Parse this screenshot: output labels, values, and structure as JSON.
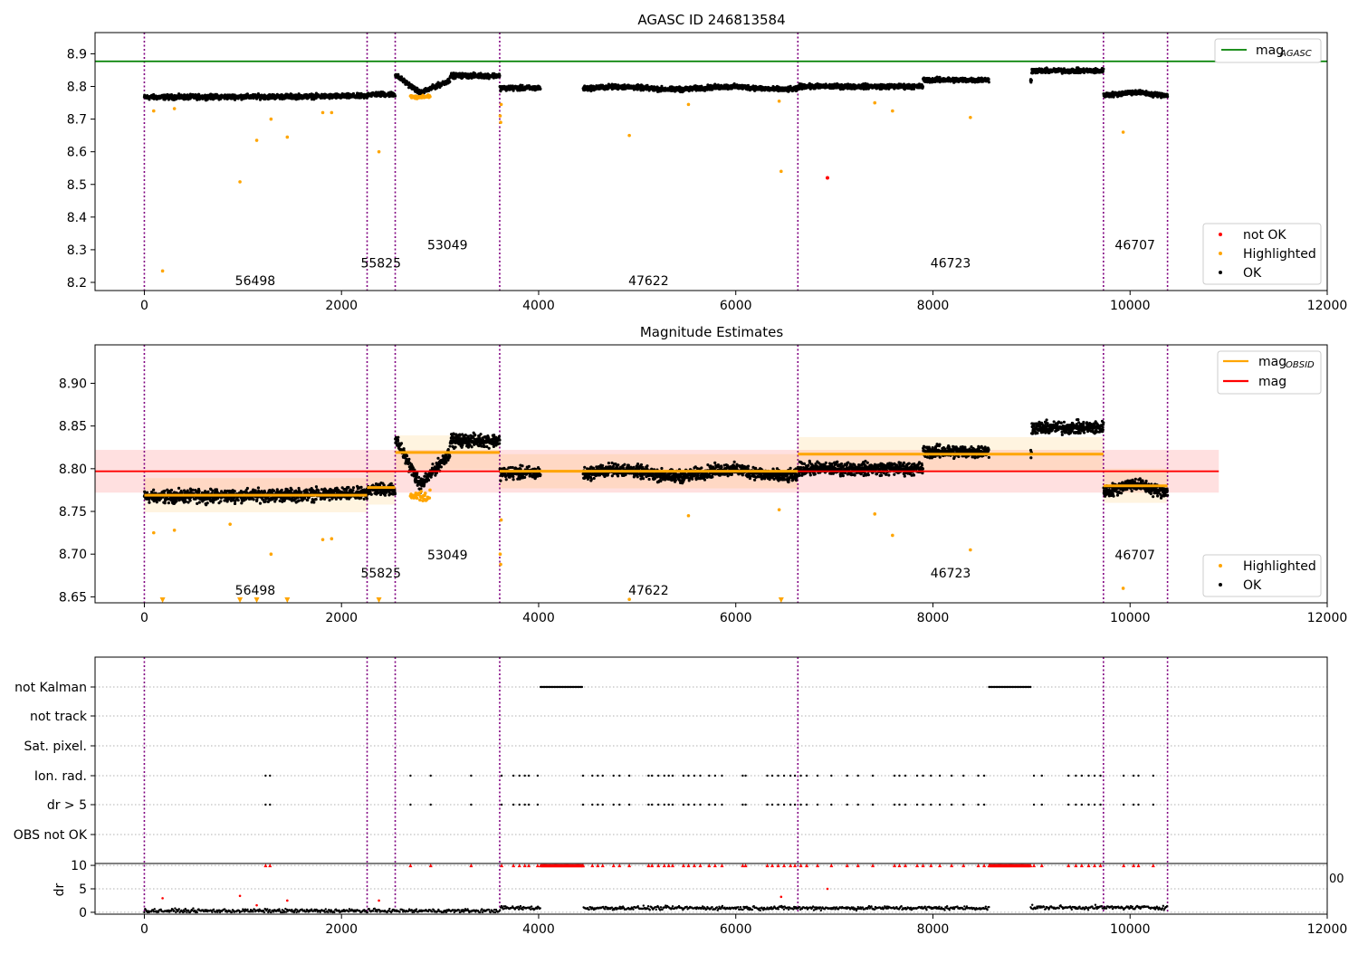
{
  "chart_data": [
    {
      "type": "scatter",
      "title": "AGASC ID 246813584",
      "xlim": [
        -500,
        12000
      ],
      "ylim": [
        8.175,
        8.965
      ],
      "xticks": [
        0,
        2000,
        4000,
        6000,
        8000,
        10000,
        12000
      ],
      "yticks": [
        8.2,
        8.3,
        8.4,
        8.5,
        8.6,
        8.7,
        8.8,
        8.9
      ],
      "ytick_labels": [
        "8.2",
        "8.3",
        "8.4",
        "8.5",
        "8.6",
        "8.7",
        "8.8",
        "8.9"
      ],
      "mag_agasc": 8.877,
      "obs_boundaries": [
        0,
        2260,
        2545,
        3605,
        6630,
        9730,
        10380
      ],
      "obs_labels": [
        {
          "text": "56498",
          "x": 1125,
          "y": 8.205
        },
        {
          "text": "55825",
          "x": 2400,
          "y": 8.26
        },
        {
          "text": "53049",
          "x": 3075,
          "y": 8.315
        },
        {
          "text": "47622",
          "x": 5115,
          "y": 8.205
        },
        {
          "text": "46723",
          "x": 8180,
          "y": 8.26
        },
        {
          "text": "46707",
          "x": 10050,
          "y": 8.315
        }
      ],
      "highlighted_points": [
        [
          95,
          8.725
        ],
        [
          185,
          8.235
        ],
        [
          305,
          8.732
        ],
        [
          970,
          8.508
        ],
        [
          1140,
          8.635
        ],
        [
          1285,
          8.7
        ],
        [
          1450,
          8.645
        ],
        [
          1810,
          8.72
        ],
        [
          1900,
          8.72
        ],
        [
          2380,
          8.6
        ],
        [
          3610,
          8.71
        ],
        [
          3615,
          8.69
        ],
        [
          3620,
          8.745
        ],
        [
          4920,
          8.65
        ],
        [
          5520,
          8.745
        ],
        [
          6440,
          8.755
        ],
        [
          6460,
          8.54
        ],
        [
          7410,
          8.75
        ],
        [
          7590,
          8.725
        ],
        [
          8380,
          8.705
        ],
        [
          9930,
          8.66
        ]
      ],
      "not_ok_points": [
        [
          6930,
          8.52
        ]
      ],
      "legend_top": {
        "position": "upper right",
        "entries": [
          {
            "label": "mag",
            "sub": "AGASC",
            "color": "#008000"
          }
        ]
      },
      "legend_bottom": {
        "position": "lower right",
        "entries": [
          {
            "label": "not OK",
            "color": "#ff0000"
          },
          {
            "label": "Highlighted",
            "color": "#ffa500"
          },
          {
            "label": "OK",
            "color": "#000000"
          }
        ]
      }
    },
    {
      "type": "scatter",
      "title": "Magnitude Estimates",
      "xlim": [
        -500,
        12000
      ],
      "ylim": [
        8.643,
        8.945
      ],
      "xticks": [
        0,
        2000,
        4000,
        6000,
        8000,
        10000,
        12000
      ],
      "yticks": [
        8.65,
        8.7,
        8.75,
        8.8,
        8.85,
        8.9
      ],
      "ytick_labels": [
        "8.65",
        "8.70",
        "8.75",
        "8.80",
        "8.85",
        "8.90"
      ],
      "mag": 8.797,
      "mag_band": [
        8.772,
        8.822
      ],
      "mag_obsid": [
        {
          "x": [
            0,
            2260
          ],
          "mag": 8.769
        },
        {
          "x": [
            2260,
            2545
          ],
          "mag": 8.778
        },
        {
          "x": [
            2545,
            3605
          ],
          "mag": 8.819
        },
        {
          "x": [
            3605,
            6630
          ],
          "mag": 8.797
        },
        {
          "x": [
            6630,
            9730
          ],
          "mag": 8.817
        },
        {
          "x": [
            9730,
            10380
          ],
          "mag": 8.78
        }
      ],
      "obs_boundaries": [
        0,
        2260,
        2545,
        3605,
        6630,
        9730,
        10380
      ],
      "obs_labels": [
        {
          "text": "56498",
          "x": 1125,
          "y": 8.658
        },
        {
          "text": "55825",
          "x": 2400,
          "y": 8.678
        },
        {
          "text": "53049",
          "x": 3075,
          "y": 8.699
        },
        {
          "text": "47622",
          "x": 5115,
          "y": 8.658
        },
        {
          "text": "46723",
          "x": 8180,
          "y": 8.678
        },
        {
          "text": "46707",
          "x": 10050,
          "y": 8.699
        }
      ],
      "highlighted_points": [
        [
          95,
          8.725
        ],
        [
          305,
          8.728
        ],
        [
          870,
          8.735
        ],
        [
          1285,
          8.7
        ],
        [
          1810,
          8.717
        ],
        [
          1900,
          8.718
        ],
        [
          3610,
          8.7
        ],
        [
          3615,
          8.688
        ],
        [
          3620,
          8.74
        ],
        [
          5520,
          8.745
        ],
        [
          6440,
          8.752
        ],
        [
          7410,
          8.747
        ],
        [
          7590,
          8.722
        ],
        [
          8380,
          8.705
        ],
        [
          9930,
          8.66
        ],
        [
          4920,
          8.647
        ]
      ],
      "clipped_points": [
        185,
        970,
        1140,
        1450,
        2380,
        6460
      ],
      "legend_top": {
        "position": "upper right",
        "entries": [
          {
            "label": "mag",
            "sub": "OBSID",
            "color": "#ffa500"
          },
          {
            "label": "mag",
            "color": "#ff0000"
          }
        ]
      },
      "legend_bottom": {
        "position": "lower right",
        "entries": [
          {
            "label": "Highlighted",
            "color": "#ffa500"
          },
          {
            "label": "OK",
            "color": "#000000"
          }
        ]
      }
    },
    {
      "type": "scatter",
      "title": "",
      "xlim": [
        -500,
        12000
      ],
      "flag_categories": [
        "not Kalman",
        "not track",
        "Sat. pixel.",
        "Ion. rad.",
        "dr > 5",
        "OBS not OK"
      ],
      "not_kalman_ranges": [
        [
          4020,
          4450
        ],
        [
          8570,
          8990
        ]
      ],
      "ion_rad_times": [
        1230,
        1275,
        2700,
        2905,
        3315,
        3625,
        3745,
        3805,
        3860,
        3900,
        3990,
        4450,
        4545,
        4600,
        4650,
        4760,
        4820,
        4920,
        5115,
        5150,
        5215,
        5275,
        5320,
        5360,
        5470,
        5520,
        5580,
        5640,
        5730,
        5790,
        5860,
        6070,
        6100,
        6320,
        6370,
        6430,
        6490,
        6555,
        6600,
        6660,
        6720,
        6830,
        6970,
        7130,
        7240,
        7390,
        7610,
        7660,
        7720,
        7840,
        7900,
        7980,
        8070,
        8190,
        8310,
        8460,
        8520,
        9025,
        9105,
        9375,
        9450,
        9510,
        9580,
        9640,
        9700,
        9935,
        10035,
        10085,
        10235
      ],
      "dr_ylim": [
        -0.4,
        10.4
      ],
      "dr_yticks": [
        0,
        5,
        10
      ],
      "dr_ylabel": "dr",
      "dr_outliers": [
        [
          185,
          3.0
        ],
        [
          970,
          3.5
        ],
        [
          1140,
          1.5
        ],
        [
          1450,
          2.5
        ],
        [
          2380,
          2.5
        ],
        [
          6460,
          3.3
        ],
        [
          6930,
          5.0
        ]
      ],
      "xtick_fragment": "00"
    }
  ]
}
